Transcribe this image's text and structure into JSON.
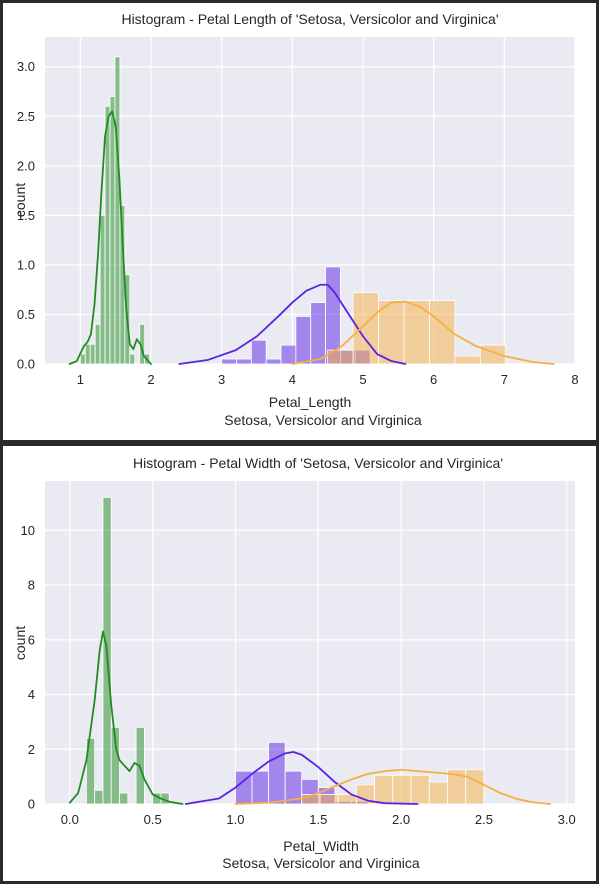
{
  "chart_data": [
    {
      "type": "histogram",
      "title": "Histogram - Petal Length of 'Setosa, Versicolor and Virginica'",
      "xlabel": "Petal_Length",
      "xlabel2": "Setosa, Versicolor and Virginica",
      "ylabel": "count",
      "xlim": [
        0.5,
        8.0
      ],
      "ylim": [
        0,
        3.3
      ],
      "xticks": [
        1,
        2,
        3,
        4,
        5,
        6,
        7,
        8
      ],
      "yticks": [
        0.0,
        0.5,
        1.0,
        1.5,
        2.0,
        2.5,
        3.0
      ],
      "ytick_decimals": 1,
      "grid": true,
      "background": "#eaeaf2",
      "series": [
        {
          "color": "#228b22",
          "bin_width": 0.07,
          "bins": [
            {
              "x": 1.0,
              "y": 0.1
            },
            {
              "x": 1.07,
              "y": 0.2
            },
            {
              "x": 1.14,
              "y": 0.2
            },
            {
              "x": 1.21,
              "y": 0.4
            },
            {
              "x": 1.28,
              "y": 1.5
            },
            {
              "x": 1.35,
              "y": 2.6
            },
            {
              "x": 1.42,
              "y": 2.7
            },
            {
              "x": 1.49,
              "y": 3.1
            },
            {
              "x": 1.56,
              "y": 1.6
            },
            {
              "x": 1.63,
              "y": 0.9
            },
            {
              "x": 1.7,
              "y": 0.1
            },
            {
              "x": 1.84,
              "y": 0.4
            },
            {
              "x": 1.91,
              "y": 0.1
            }
          ],
          "kde": {
            "x": [
              0.85,
              0.95,
              1.05,
              1.1,
              1.15,
              1.2,
              1.25,
              1.3,
              1.35,
              1.4,
              1.45,
              1.5,
              1.55,
              1.6,
              1.65,
              1.7,
              1.75,
              1.8,
              1.85,
              1.9,
              2.0
            ],
            "y": [
              0.0,
              0.03,
              0.18,
              0.22,
              0.3,
              0.6,
              1.1,
              1.75,
              2.3,
              2.5,
              2.55,
              2.4,
              1.9,
              1.2,
              0.55,
              0.2,
              0.15,
              0.25,
              0.2,
              0.08,
              0.0
            ]
          }
        },
        {
          "color": "#5b21e6",
          "bin_width": 0.21,
          "bins": [
            {
              "x": 3.0,
              "y": 0.05
            },
            {
              "x": 3.21,
              "y": 0.05
            },
            {
              "x": 3.42,
              "y": 0.24
            },
            {
              "x": 3.63,
              "y": 0.05
            },
            {
              "x": 3.84,
              "y": 0.19
            },
            {
              "x": 4.05,
              "y": 0.48
            },
            {
              "x": 4.26,
              "y": 0.62
            },
            {
              "x": 4.47,
              "y": 0.98
            },
            {
              "x": 4.68,
              "y": 0.14
            },
            {
              "x": 4.89,
              "y": 0.14
            }
          ],
          "kde": {
            "x": [
              2.4,
              2.8,
              3.2,
              3.5,
              3.8,
              4.0,
              4.2,
              4.4,
              4.5,
              4.6,
              4.8,
              5.0,
              5.2,
              5.4,
              5.6
            ],
            "y": [
              0.0,
              0.04,
              0.14,
              0.28,
              0.48,
              0.62,
              0.74,
              0.8,
              0.8,
              0.72,
              0.5,
              0.28,
              0.1,
              0.03,
              0.0
            ]
          }
        },
        {
          "color": "#f5b041",
          "bin_width": 0.36,
          "bins": [
            {
              "x": 4.5,
              "y": 0.14
            },
            {
              "x": 4.86,
              "y": 0.72
            },
            {
              "x": 5.22,
              "y": 0.64
            },
            {
              "x": 5.58,
              "y": 0.64
            },
            {
              "x": 5.94,
              "y": 0.64
            },
            {
              "x": 6.3,
              "y": 0.08
            },
            {
              "x": 6.66,
              "y": 0.19
            }
          ],
          "kde": {
            "x": [
              4.0,
              4.4,
              4.7,
              5.0,
              5.2,
              5.4,
              5.6,
              5.8,
              6.0,
              6.3,
              6.6,
              7.0,
              7.4,
              7.7
            ],
            "y": [
              0.0,
              0.05,
              0.18,
              0.38,
              0.52,
              0.62,
              0.63,
              0.58,
              0.48,
              0.3,
              0.18,
              0.08,
              0.02,
              0.0
            ]
          }
        }
      ]
    },
    {
      "type": "histogram",
      "title": "Histogram - Petal Width of 'Setosa, Versicolor and Virginica'",
      "xlabel": "Petal_Width",
      "xlabel2": "Setosa, Versicolor and Virginica",
      "ylabel": "count",
      "xlim": [
        -0.15,
        3.05
      ],
      "ylim": [
        0,
        11.8
      ],
      "xticks": [
        0.0,
        0.5,
        1.0,
        1.5,
        2.0,
        2.5,
        3.0
      ],
      "yticks": [
        0,
        2,
        4,
        6,
        8,
        10
      ],
      "ytick_decimals": 0,
      "grid": true,
      "background": "#eaeaf2",
      "series": [
        {
          "color": "#228b22",
          "bin_width": 0.05,
          "bins": [
            {
              "x": 0.1,
              "y": 2.4
            },
            {
              "x": 0.15,
              "y": 0.5
            },
            {
              "x": 0.2,
              "y": 11.2
            },
            {
              "x": 0.25,
              "y": 2.8
            },
            {
              "x": 0.3,
              "y": 0.4
            },
            {
              "x": 0.4,
              "y": 2.8
            },
            {
              "x": 0.5,
              "y": 0.4
            },
            {
              "x": 0.55,
              "y": 0.4
            }
          ],
          "kde": {
            "x": [
              0.0,
              0.05,
              0.1,
              0.15,
              0.18,
              0.2,
              0.22,
              0.25,
              0.28,
              0.3,
              0.33,
              0.36,
              0.39,
              0.42,
              0.45,
              0.5,
              0.55,
              0.6,
              0.68
            ],
            "y": [
              0.05,
              0.4,
              1.6,
              3.8,
              5.6,
              6.3,
              5.8,
              3.6,
              2.0,
              1.6,
              1.4,
              1.2,
              1.5,
              1.4,
              0.9,
              0.35,
              0.2,
              0.08,
              0.0
            ]
          }
        },
        {
          "color": "#5b21e6",
          "bin_width": 0.1,
          "bins": [
            {
              "x": 1.0,
              "y": 1.2
            },
            {
              "x": 1.1,
              "y": 1.2
            },
            {
              "x": 1.2,
              "y": 2.25
            },
            {
              "x": 1.3,
              "y": 1.2
            },
            {
              "x": 1.4,
              "y": 0.9
            },
            {
              "x": 1.5,
              "y": 0.6
            },
            {
              "x": 1.6,
              "y": 0.1
            },
            {
              "x": 1.7,
              "y": 0.1
            }
          ],
          "kde": {
            "x": [
              0.7,
              0.9,
              1.0,
              1.1,
              1.2,
              1.3,
              1.35,
              1.4,
              1.5,
              1.6,
              1.7,
              1.8,
              1.9,
              2.1
            ],
            "y": [
              0.0,
              0.2,
              0.6,
              1.1,
              1.55,
              1.85,
              1.9,
              1.8,
              1.35,
              0.8,
              0.35,
              0.12,
              0.03,
              0.0
            ]
          }
        },
        {
          "color": "#f5b041",
          "bin_width": 0.11,
          "bins": [
            {
              "x": 1.4,
              "y": 0.35
            },
            {
              "x": 1.51,
              "y": 0.35
            },
            {
              "x": 1.62,
              "y": 0.35
            },
            {
              "x": 1.73,
              "y": 0.7
            },
            {
              "x": 1.84,
              "y": 1.05
            },
            {
              "x": 1.95,
              "y": 1.05
            },
            {
              "x": 2.06,
              "y": 1.05
            },
            {
              "x": 2.17,
              "y": 0.8
            },
            {
              "x": 2.28,
              "y": 1.25
            },
            {
              "x": 2.39,
              "y": 1.25
            }
          ],
          "kde": {
            "x": [
              1.0,
              1.2,
              1.4,
              1.5,
              1.6,
              1.7,
              1.8,
              1.9,
              2.0,
              2.1,
              2.2,
              2.3,
              2.4,
              2.5,
              2.6,
              2.7,
              2.8,
              2.9
            ],
            "y": [
              0.0,
              0.05,
              0.2,
              0.4,
              0.65,
              0.9,
              1.1,
              1.2,
              1.25,
              1.2,
              1.15,
              1.1,
              1.0,
              0.7,
              0.4,
              0.18,
              0.06,
              0.0
            ]
          }
        }
      ]
    }
  ]
}
